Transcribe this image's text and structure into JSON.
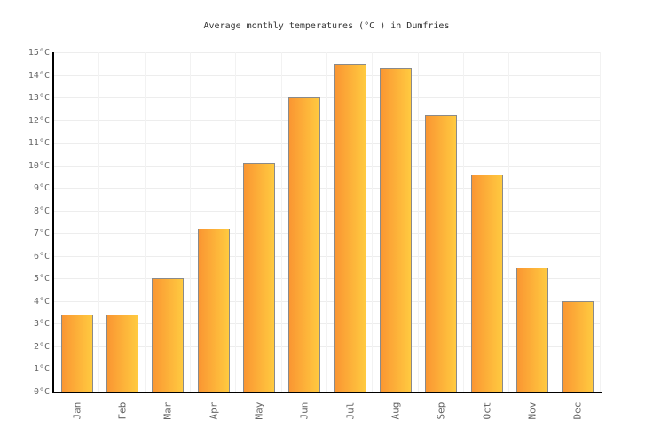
{
  "title": "Average monthly temperatures (°C ) in Dumfries",
  "colors": {
    "background": "#ffffff",
    "bar_gradient_left": "#fa9632",
    "bar_gradient_right": "#ffca40",
    "bar_border": "#8a8a8a",
    "axis_line": "#000000",
    "grid_horizontal": "#ededed",
    "grid_vertical": "#f2f2f2",
    "axis_label": "#666666",
    "title_color": "#333333"
  },
  "chart_data": {
    "type": "bar",
    "title": "Average monthly temperatures (°C ) in Dumfries",
    "categories": [
      "Jan",
      "Feb",
      "Mar",
      "Apr",
      "May",
      "Jun",
      "Jul",
      "Aug",
      "Sep",
      "Oct",
      "Nov",
      "Dec"
    ],
    "values": [
      3.4,
      3.4,
      5.0,
      7.2,
      10.1,
      13.0,
      14.5,
      14.3,
      12.2,
      9.6,
      5.5,
      4.0
    ],
    "xlabel": "",
    "ylabel": "",
    "ylim": [
      0,
      15
    ],
    "ytick_step": 1,
    "ytick_suffix": "°C",
    "grid": true,
    "legend": false,
    "bar_orientation": "vertical",
    "x_label_rotation": -90
  }
}
